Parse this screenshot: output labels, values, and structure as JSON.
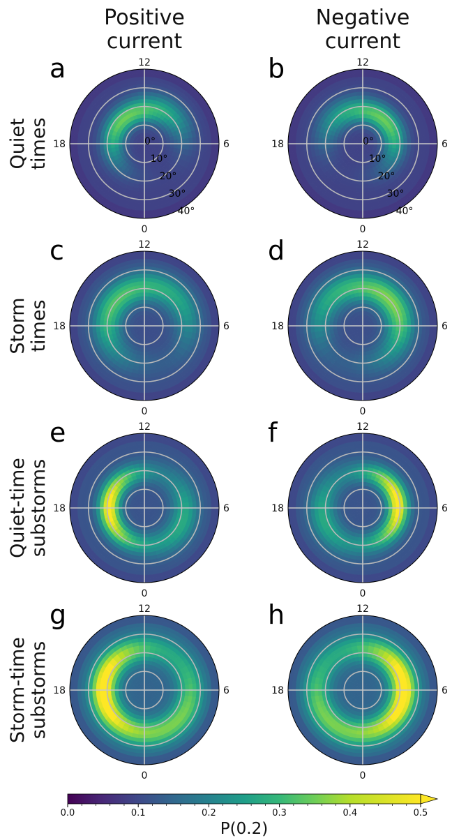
{
  "figure": {
    "column_titles": [
      [
        "Positive",
        "current"
      ],
      [
        "Negative",
        "current"
      ]
    ],
    "row_titles": [
      [
        "Quiet",
        "times"
      ],
      [
        "Storm",
        "times"
      ],
      [
        "Quiet-time",
        "substorms"
      ],
      [
        "Storm-time",
        "substorms"
      ]
    ],
    "latitude_labels": [
      "0°",
      "10°",
      "20°",
      "30°",
      "40°"
    ],
    "mlt_labels": {
      "top": "12",
      "bottom": "0",
      "left": "18",
      "right": "6"
    }
  },
  "chart_data": {
    "type": "heatmap",
    "projection": "polar (MLT vs colatitude)",
    "colormap": "viridis",
    "colorbar": {
      "label": "P(0.2)",
      "ticks": [
        "0.0",
        "0.1",
        "0.2",
        "0.3",
        "0.4",
        "0.5"
      ],
      "range": [
        0,
        0.5
      ],
      "extend": "max"
    },
    "radial_axis": {
      "unit": "deg colatitude",
      "range": [
        0,
        40
      ],
      "ring_ticks": [
        0,
        10,
        20,
        30,
        40
      ]
    },
    "panels": [
      {
        "letter": "a",
        "column": "Positive current",
        "row": "Quiet times",
        "peak": 0.38,
        "peak_mlt": 15.0,
        "peak_colat": 17,
        "spread_mlt": 3.8,
        "spread_colat": 4.5,
        "background": 0.1,
        "secondary": {
          "peak": 0.24,
          "peak_mlt": 9.5,
          "peak_colat": 22,
          "spread_mlt": 2.5
        },
        "show_lat_labels": true
      },
      {
        "letter": "b",
        "column": "Negative current",
        "row": "Quiet times",
        "peak": 0.38,
        "peak_mlt": 9.0,
        "peak_colat": 17,
        "spread_mlt": 3.8,
        "spread_colat": 4.5,
        "background": 0.1,
        "secondary": {
          "peak": 0.22,
          "peak_mlt": 15.0,
          "peak_colat": 21,
          "spread_mlt": 2.5
        },
        "show_lat_labels": true
      },
      {
        "letter": "c",
        "column": "Positive current",
        "row": "Storm times",
        "peak": 0.36,
        "peak_mlt": 15.5,
        "peak_colat": 20,
        "spread_mlt": 4.5,
        "spread_colat": 5.5,
        "background": 0.12,
        "secondary": {
          "peak": 0.24,
          "peak_mlt": 8.0,
          "peak_colat": 24,
          "spread_mlt": 3.0
        },
        "show_lat_labels": false
      },
      {
        "letter": "d",
        "column": "Negative current",
        "row": "Storm times",
        "peak": 0.4,
        "peak_mlt": 8.5,
        "peak_colat": 20,
        "spread_mlt": 4.5,
        "spread_colat": 5.5,
        "background": 0.12,
        "secondary": {
          "peak": 0.24,
          "peak_mlt": 16.0,
          "peak_colat": 24,
          "spread_mlt": 3.0
        },
        "show_lat_labels": false
      },
      {
        "letter": "e",
        "column": "Positive current",
        "row": "Quiet-time substorms",
        "peak": 0.52,
        "peak_mlt": 18.0,
        "peak_colat": 19,
        "spread_mlt": 4.0,
        "spread_colat": 4.0,
        "background": 0.13,
        "secondary": {
          "peak": 0.3,
          "peak_mlt": 5.0,
          "peak_colat": 22,
          "spread_mlt": 3.0
        },
        "show_lat_labels": false
      },
      {
        "letter": "f",
        "column": "Negative current",
        "row": "Quiet-time substorms",
        "peak": 0.52,
        "peak_mlt": 6.5,
        "peak_colat": 19,
        "spread_mlt": 4.0,
        "spread_colat": 4.0,
        "background": 0.13,
        "secondary": {
          "peak": 0.3,
          "peak_mlt": 19.0,
          "peak_colat": 22,
          "spread_mlt": 3.0
        },
        "show_lat_labels": false
      },
      {
        "letter": "g",
        "column": "Positive current",
        "row": "Storm-time substorms",
        "peak": 0.55,
        "peak_mlt": 18.0,
        "peak_colat": 22,
        "spread_mlt": 4.8,
        "spread_colat": 5.0,
        "background": 0.16,
        "secondary": {
          "peak": 0.36,
          "peak_mlt": 4.5,
          "peak_colat": 25,
          "spread_mlt": 3.5
        },
        "show_lat_labels": false
      },
      {
        "letter": "h",
        "column": "Negative current",
        "row": "Storm-time substorms",
        "peak": 0.55,
        "peak_mlt": 6.0,
        "peak_colat": 22,
        "spread_mlt": 4.8,
        "spread_colat": 5.0,
        "background": 0.16,
        "secondary": {
          "peak": 0.36,
          "peak_mlt": 19.5,
          "peak_colat": 25,
          "spread_mlt": 3.5
        },
        "show_lat_labels": false
      }
    ]
  }
}
